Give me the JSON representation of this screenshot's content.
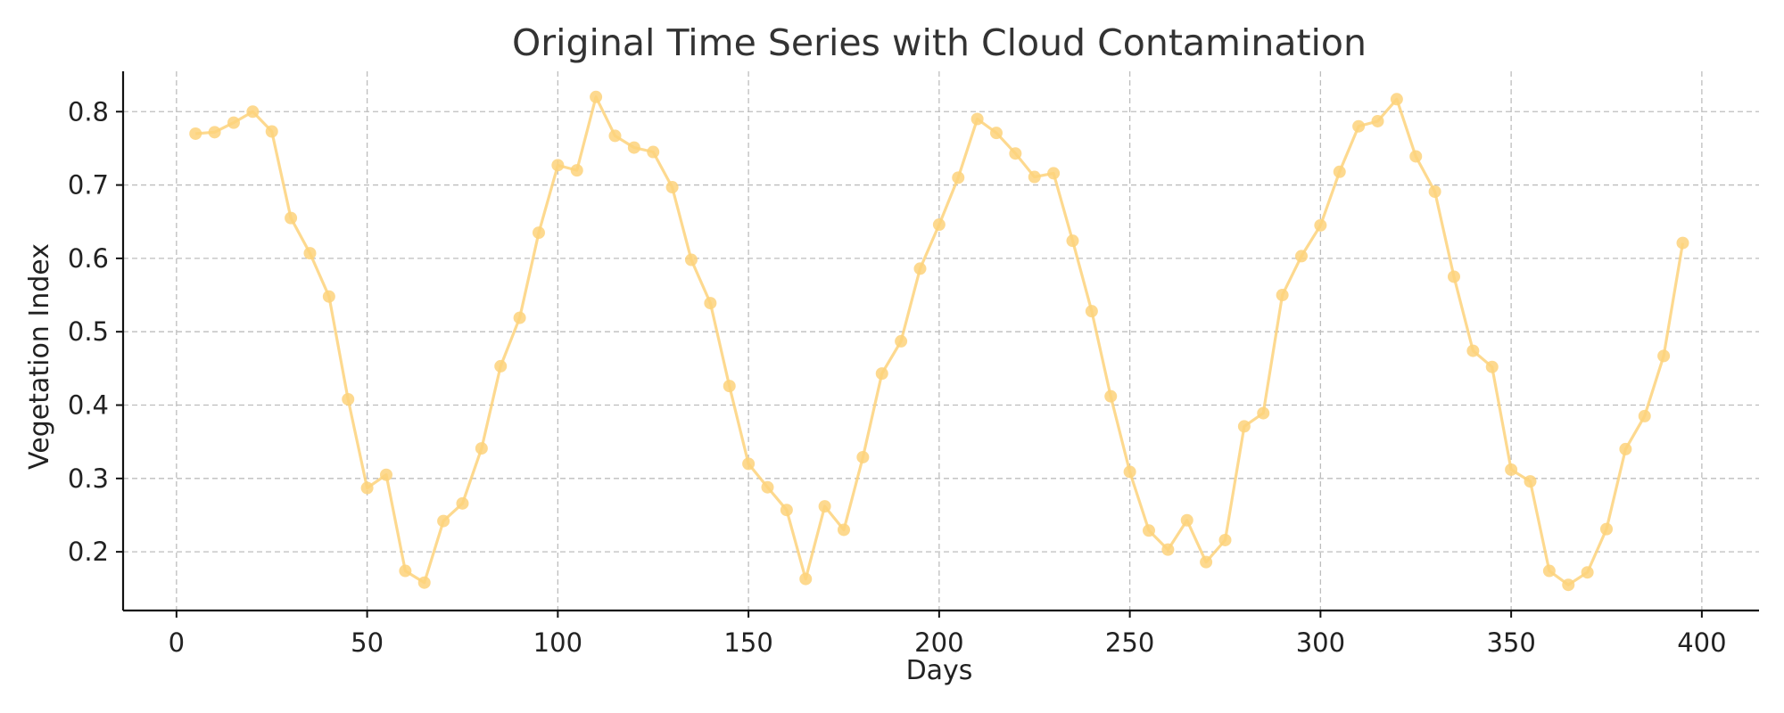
{
  "chart_data": {
    "type": "line",
    "title": "Original Time Series with Cloud Contamination",
    "xlabel": "Days",
    "ylabel": "Vegetation Index",
    "xlim": [
      -14,
      415
    ],
    "ylim": [
      0.12,
      0.855
    ],
    "xticks": [
      0,
      50,
      100,
      150,
      200,
      250,
      300,
      350,
      400
    ],
    "yticks": [
      0.2,
      0.3,
      0.4,
      0.5,
      0.6,
      0.7,
      0.8
    ],
    "xtick_labels": [
      "0",
      "50",
      "100",
      "150",
      "200",
      "250",
      "300",
      "350",
      "400"
    ],
    "ytick_labels": [
      "0.2",
      "0.3",
      "0.4",
      "0.5",
      "0.6",
      "0.7",
      "0.8"
    ],
    "grid": true,
    "series": [
      {
        "color": "#FDD27B",
        "markers": true,
        "x": [
          5,
          10,
          15,
          20,
          25,
          30,
          35,
          40,
          45,
          50,
          55,
          60,
          65,
          70,
          75,
          80,
          85,
          90,
          95,
          100,
          105,
          110,
          115,
          120,
          125,
          130,
          135,
          140,
          145,
          150,
          155,
          160,
          165,
          170,
          175,
          180,
          185,
          190,
          195,
          200,
          205,
          210,
          215,
          220,
          225,
          230,
          235,
          240,
          245,
          250,
          255,
          260,
          265,
          270,
          275,
          280,
          285,
          290,
          295,
          300,
          305,
          310,
          315,
          320,
          325,
          330,
          335,
          340,
          345,
          350,
          355,
          360,
          365,
          370,
          375,
          380,
          385,
          390,
          395
        ],
        "y": [
          0.77,
          0.772,
          0.785,
          0.8,
          0.773,
          0.655,
          0.607,
          0.548,
          0.408,
          0.287,
          0.305,
          0.174,
          0.158,
          0.242,
          0.266,
          0.341,
          0.453,
          0.519,
          0.635,
          0.727,
          0.72,
          0.82,
          0.767,
          0.751,
          0.745,
          0.697,
          0.598,
          0.539,
          0.426,
          0.32,
          0.288,
          0.257,
          0.163,
          0.262,
          0.23,
          0.329,
          0.443,
          0.487,
          0.586,
          0.646,
          0.71,
          0.79,
          0.771,
          0.743,
          0.711,
          0.716,
          0.624,
          0.528,
          0.412,
          0.309,
          0.229,
          0.203,
          0.243,
          0.186,
          0.216,
          0.371,
          0.389,
          0.55,
          0.603,
          0.645,
          0.718,
          0.78,
          0.787,
          0.817,
          0.739,
          0.691,
          0.575,
          0.474,
          0.452,
          0.312,
          0.296,
          0.174,
          0.155,
          0.172,
          0.231,
          0.34,
          0.385,
          0.467,
          0.621
        ]
      }
    ]
  }
}
